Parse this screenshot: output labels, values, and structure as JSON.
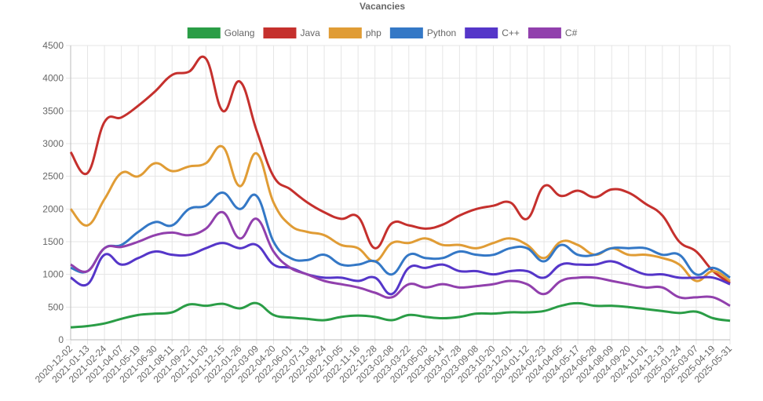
{
  "chart_data": {
    "type": "line",
    "title": "Vacancies",
    "categories": [
      "2020-12-02",
      "2021-01-13",
      "2021-02-24",
      "2021-04-07",
      "2021-05-19",
      "2021-06-30",
      "2021-08-11",
      "2021-09-22",
      "2021-11-03",
      "2021-12-15",
      "2022-01-26",
      "2022-03-09",
      "2022-04-20",
      "2022-06-01",
      "2022-07-13",
      "2022-08-24",
      "2022-10-05",
      "2022-11-16",
      "2022-12-28",
      "2023-02-08",
      "2023-03-22",
      "2023-05-03",
      "2023-06-14",
      "2023-07-28",
      "2023-09-08",
      "2023-10-20",
      "2023-12-01",
      "2024-01-12",
      "2024-02-23",
      "2024-04-05",
      "2024-05-17",
      "2024-06-28",
      "2024-08-09",
      "2024-09-20",
      "2024-11-01",
      "2024-12-13",
      "2025-01-24",
      "2025-03-07",
      "2025-04-19",
      "2025-05-31"
    ],
    "series": [
      {
        "name": "Golang",
        "color": "#2a9d46",
        "values": [
          190,
          210,
          250,
          320,
          380,
          400,
          420,
          540,
          520,
          550,
          480,
          560,
          380,
          340,
          320,
          300,
          350,
          370,
          350,
          300,
          380,
          350,
          330,
          350,
          400,
          400,
          420,
          420,
          440,
          520,
          560,
          520,
          520,
          500,
          470,
          440,
          410,
          430,
          330,
          290
        ]
      },
      {
        "name": "Java",
        "color": "#c5302d",
        "values": [
          2870,
          2550,
          3330,
          3400,
          3580,
          3800,
          4050,
          4100,
          4300,
          3500,
          3950,
          3200,
          2500,
          2300,
          2100,
          1950,
          1850,
          1880,
          1400,
          1780,
          1750,
          1700,
          1760,
          1900,
          2000,
          2050,
          2100,
          1850,
          2350,
          2200,
          2280,
          2180,
          2300,
          2250,
          2080,
          1900,
          1500,
          1350,
          1050,
          870
        ]
      },
      {
        "name": "php",
        "color": "#e09c35",
        "values": [
          2000,
          1750,
          2150,
          2550,
          2500,
          2700,
          2580,
          2650,
          2700,
          2950,
          2350,
          2850,
          2100,
          1750,
          1650,
          1600,
          1450,
          1400,
          1200,
          1480,
          1480,
          1550,
          1450,
          1450,
          1400,
          1480,
          1550,
          1450,
          1250,
          1500,
          1450,
          1300,
          1400,
          1300,
          1300,
          1250,
          1150,
          900,
          1050,
          900
        ]
      },
      {
        "name": "Python",
        "color": "#3478c6",
        "values": [
          1100,
          1050,
          1400,
          1450,
          1650,
          1800,
          1750,
          2000,
          2050,
          2250,
          2000,
          2200,
          1500,
          1250,
          1220,
          1300,
          1150,
          1150,
          1200,
          1000,
          1300,
          1250,
          1250,
          1350,
          1300,
          1300,
          1400,
          1400,
          1200,
          1450,
          1300,
          1300,
          1400,
          1400,
          1400,
          1300,
          1300,
          1000,
          1100,
          950
        ]
      },
      {
        "name": "C++",
        "color": "#5536c9",
        "values": [
          950,
          850,
          1300,
          1150,
          1250,
          1350,
          1300,
          1300,
          1400,
          1480,
          1400,
          1450,
          1150,
          1100,
          1000,
          950,
          950,
          900,
          950,
          700,
          1100,
          1100,
          1150,
          1050,
          1050,
          1000,
          1050,
          1050,
          950,
          1150,
          1150,
          1150,
          1200,
          1100,
          1000,
          1000,
          950,
          950,
          950,
          850
        ]
      },
      {
        "name": "C#",
        "color": "#9140ad",
        "values": [
          1150,
          1050,
          1400,
          1420,
          1500,
          1600,
          1640,
          1600,
          1700,
          1950,
          1550,
          1850,
          1350,
          1100,
          1000,
          900,
          850,
          800,
          720,
          650,
          850,
          800,
          850,
          800,
          820,
          850,
          900,
          850,
          700,
          900,
          950,
          950,
          900,
          850,
          800,
          800,
          650,
          650,
          650,
          520
        ]
      }
    ],
    "ylim": [
      0,
      4500
    ],
    "yticks": [
      0,
      500,
      1000,
      1500,
      2000,
      2500,
      3000,
      3500,
      4000,
      4500
    ],
    "grid": true
  }
}
